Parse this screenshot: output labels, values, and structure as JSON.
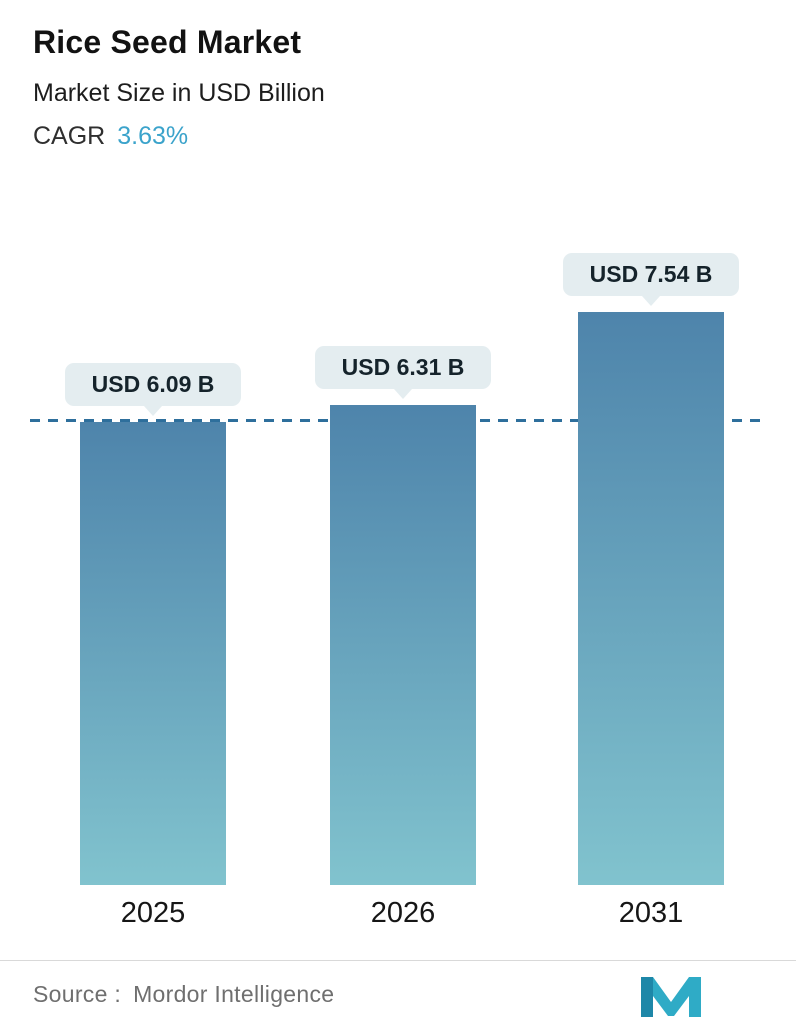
{
  "header": {
    "title": "Rice Seed Market",
    "subtitle": "Market Size in USD Billion",
    "cagr_label": "CAGR",
    "cagr_value": "3.63%"
  },
  "chart_data": {
    "type": "bar",
    "title": "Rice Seed Market",
    "subtitle": "Market Size in USD Billion",
    "cagr_percent": "3.63%",
    "categories": [
      "2025",
      "2026",
      "2031"
    ],
    "values": [
      6.09,
      6.31,
      7.54
    ],
    "value_labels": [
      "USD 6.09 B",
      "USD 6.31 B",
      "USD 7.54 B"
    ],
    "unit": "USD Billion",
    "xlabel": "",
    "ylabel": "",
    "ylim": [
      0,
      8.6
    ],
    "grid": false,
    "legend": false,
    "reference_line": {
      "value": 6.09,
      "style": "dashed"
    },
    "colors": {
      "bar_top": "#4e84ab",
      "bar_bottom": "#81c3ce",
      "bubble_bg": "#e4edf0",
      "dashed_line": "#2e6f9c",
      "cagr_accent": "#3ba3cb",
      "logo_teal": "#2fabc6",
      "logo_dark_teal": "#1e87a8"
    }
  },
  "footer": {
    "source_label": "Source :",
    "source_value": "Mordor Intelligence"
  }
}
